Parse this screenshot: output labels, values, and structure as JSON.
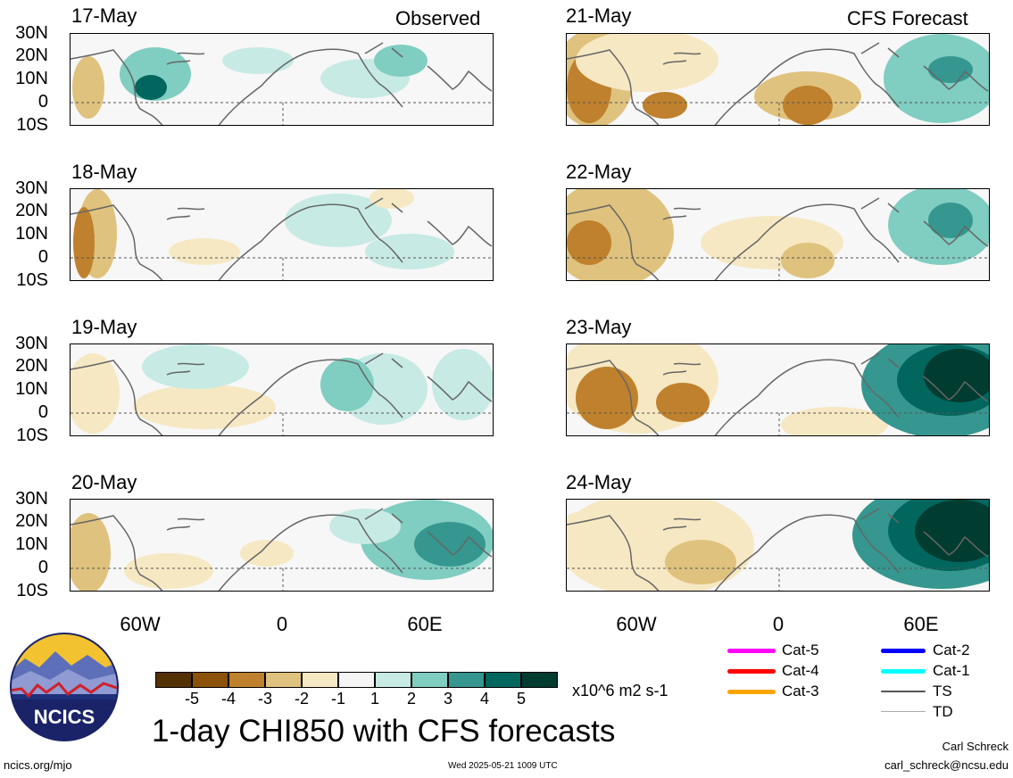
{
  "figure": {
    "left_title": "Observed",
    "right_title": "CFS Forecast",
    "main_title": "1-day CHI850 with CFS forecasts",
    "units": "x10^6 m2 s-1",
    "footer_left": "ncics.org/mjo",
    "footer_center": "Wed 2025-05-21 1009 UTC",
    "author": "Carl Schreck",
    "email": "carl_schreck@ncsu.edu",
    "logo_text": "NCICS"
  },
  "axes": {
    "lat_labels": [
      "30N",
      "20N",
      "10N",
      "0",
      "10S"
    ],
    "lon_labels": [
      "60W",
      "0",
      "60E"
    ]
  },
  "panels_left": [
    {
      "date": "17-May"
    },
    {
      "date": "18-May"
    },
    {
      "date": "19-May"
    },
    {
      "date": "20-May"
    }
  ],
  "panels_right": [
    {
      "date": "21-May"
    },
    {
      "date": "22-May"
    },
    {
      "date": "23-May"
    },
    {
      "date": "24-May"
    }
  ],
  "colorbar": {
    "labels": [
      "-5",
      "-4",
      "-3",
      "-2",
      "-1",
      "1",
      "2",
      "3",
      "4",
      "5"
    ],
    "colors": [
      "#543005",
      "#8c510a",
      "#bf812d",
      "#dfc27d",
      "#f6e8c3",
      "#f5f5f5",
      "#c7eae5",
      "#80cdc1",
      "#35978f",
      "#01665e",
      "#003c30"
    ]
  },
  "legend": [
    {
      "label": "Cat-5",
      "color": "#ff00ff"
    },
    {
      "label": "Cat-4",
      "color": "#ff0000"
    },
    {
      "label": "Cat-3",
      "color": "#ffa500"
    },
    {
      "label": "Cat-2",
      "color": "#0000ff"
    },
    {
      "label": "Cat-1",
      "color": "#00ffff"
    },
    {
      "label": "TS",
      "color": "#555555"
    },
    {
      "label": "TD",
      "color": "#aaaaaa"
    }
  ]
}
